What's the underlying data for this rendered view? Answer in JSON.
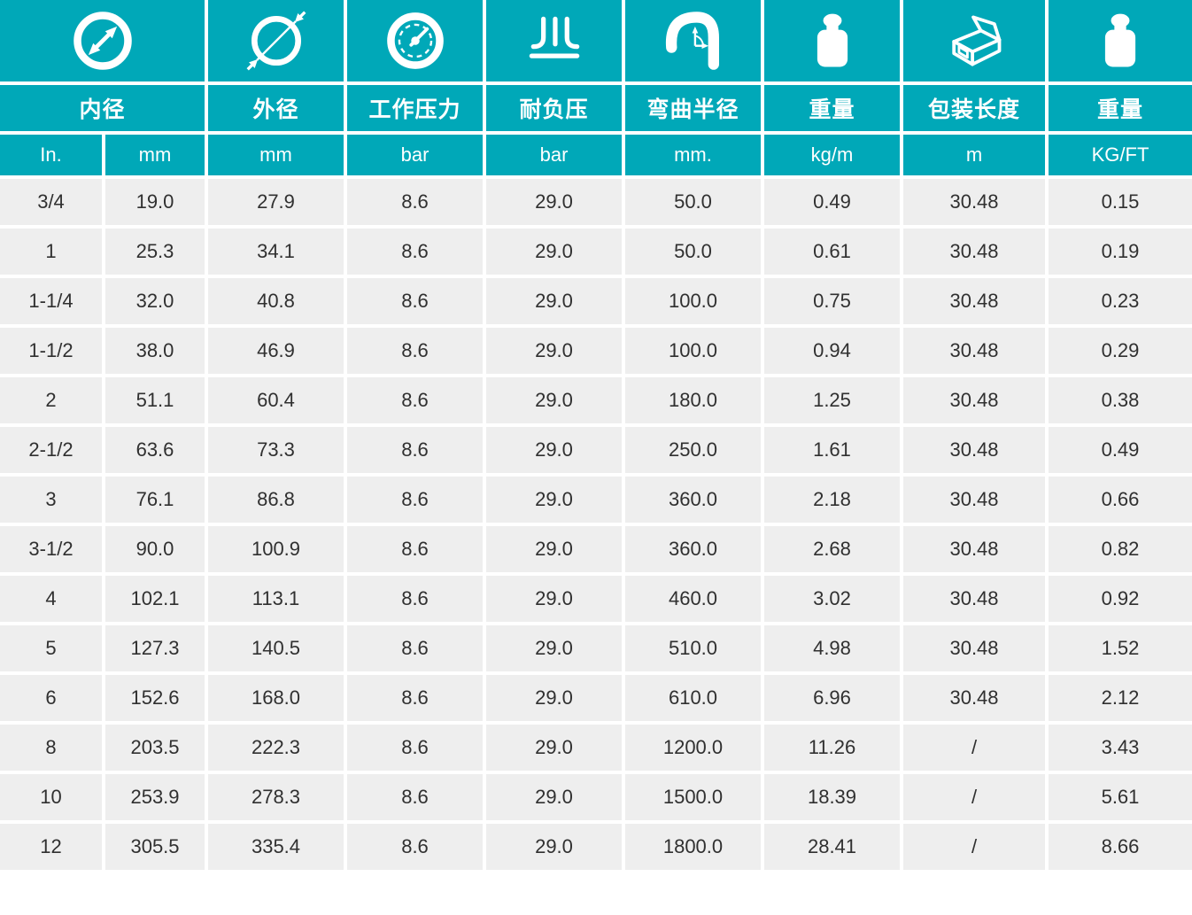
{
  "accent_color": "#00A8B8",
  "row_bg_color": "#EEEEEE",
  "data_text_color": "#303030",
  "columns": [
    {
      "icon": "inner-diameter-icon",
      "label": "内径",
      "units": [
        "In.",
        "mm"
      ]
    },
    {
      "icon": "outer-diameter-icon",
      "label": "外径",
      "units": [
        "mm"
      ]
    },
    {
      "icon": "pressure-gauge-icon",
      "label": "工作压力",
      "units": [
        "bar"
      ]
    },
    {
      "icon": "vacuum-resistance-icon",
      "label": "耐负压",
      "units": [
        "bar"
      ]
    },
    {
      "icon": "bend-radius-icon",
      "label": "弯曲半径",
      "units": [
        "mm."
      ]
    },
    {
      "icon": "weight-icon",
      "label": "重量",
      "units": [
        "kg/m"
      ]
    },
    {
      "icon": "package-length-icon",
      "label": "包装长度",
      "units": [
        "m"
      ]
    },
    {
      "icon": "weight-icon",
      "label": "重量",
      "units": [
        "KG/FT"
      ]
    }
  ],
  "table": {
    "rows": [
      [
        "3/4",
        "19.0",
        "27.9",
        "8.6",
        "29.0",
        "50.0",
        "0.49",
        "30.48",
        "0.15"
      ],
      [
        "1",
        "25.3",
        "34.1",
        "8.6",
        "29.0",
        "50.0",
        "0.61",
        "30.48",
        "0.19"
      ],
      [
        "1-1/4",
        "32.0",
        "40.8",
        "8.6",
        "29.0",
        "100.0",
        "0.75",
        "30.48",
        "0.23"
      ],
      [
        "1-1/2",
        "38.0",
        "46.9",
        "8.6",
        "29.0",
        "100.0",
        "0.94",
        "30.48",
        "0.29"
      ],
      [
        "2",
        "51.1",
        "60.4",
        "8.6",
        "29.0",
        "180.0",
        "1.25",
        "30.48",
        "0.38"
      ],
      [
        "2-1/2",
        "63.6",
        "73.3",
        "8.6",
        "29.0",
        "250.0",
        "1.61",
        "30.48",
        "0.49"
      ],
      [
        "3",
        "76.1",
        "86.8",
        "8.6",
        "29.0",
        "360.0",
        "2.18",
        "30.48",
        "0.66"
      ],
      [
        "3-1/2",
        "90.0",
        "100.9",
        "8.6",
        "29.0",
        "360.0",
        "2.68",
        "30.48",
        "0.82"
      ],
      [
        "4",
        "102.1",
        "113.1",
        "8.6",
        "29.0",
        "460.0",
        "3.02",
        "30.48",
        "0.92"
      ],
      [
        "5",
        "127.3",
        "140.5",
        "8.6",
        "29.0",
        "510.0",
        "4.98",
        "30.48",
        "1.52"
      ],
      [
        "6",
        "152.6",
        "168.0",
        "8.6",
        "29.0",
        "610.0",
        "6.96",
        "30.48",
        "2.12"
      ],
      [
        "8",
        "203.5",
        "222.3",
        "8.6",
        "29.0",
        "1200.0",
        "11.26",
        "/",
        "3.43"
      ],
      [
        "10",
        "253.9",
        "278.3",
        "8.6",
        "29.0",
        "1500.0",
        "18.39",
        "/",
        "5.61"
      ],
      [
        "12",
        "305.5",
        "335.4",
        "8.6",
        "29.0",
        "1800.0",
        "28.41",
        "/",
        "8.66"
      ]
    ]
  }
}
